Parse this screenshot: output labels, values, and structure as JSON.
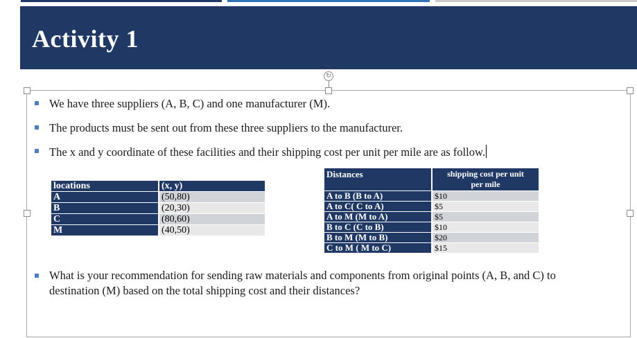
{
  "slide": {
    "title": "Activity 1",
    "bullets": [
      "We have three suppliers (A, B, C) and one manufacturer (M).",
      "The products must be sent out from these three suppliers to the manufacturer.",
      "The x and y coordinate of these facilities and their shipping cost per unit per mile are as follow.",
      "What is your recommendation for sending raw materials and components from original points (A, B, and C) to",
      "destination (M) based on the total shipping cost and their distances?"
    ]
  },
  "locations_table": {
    "headers": [
      "locations",
      "(x, y)"
    ],
    "rows": [
      [
        "A",
        "(50,80)"
      ],
      [
        "B",
        "(20,30)"
      ],
      [
        "C",
        "(80,60)"
      ],
      [
        "M",
        "(40,50)"
      ]
    ]
  },
  "distances_table": {
    "headers": [
      "Distances",
      "shipping cost per unit",
      "per mile"
    ],
    "rows": [
      [
        "A to B (B to A)",
        "$10"
      ],
      [
        "A to C( C to A)",
        "$5"
      ],
      [
        "A to M (M to A)",
        "$5"
      ],
      [
        "B to C (C to B)",
        "$10"
      ],
      [
        "B to M (M to B)",
        "$20"
      ],
      [
        "C to M ( M to C)",
        "$15"
      ]
    ]
  },
  "colors": {
    "banner": "#1f3864",
    "bullet": "#4a7fc1",
    "row_dark": "#d0d4d9",
    "row_light": "#e8e8e8"
  }
}
